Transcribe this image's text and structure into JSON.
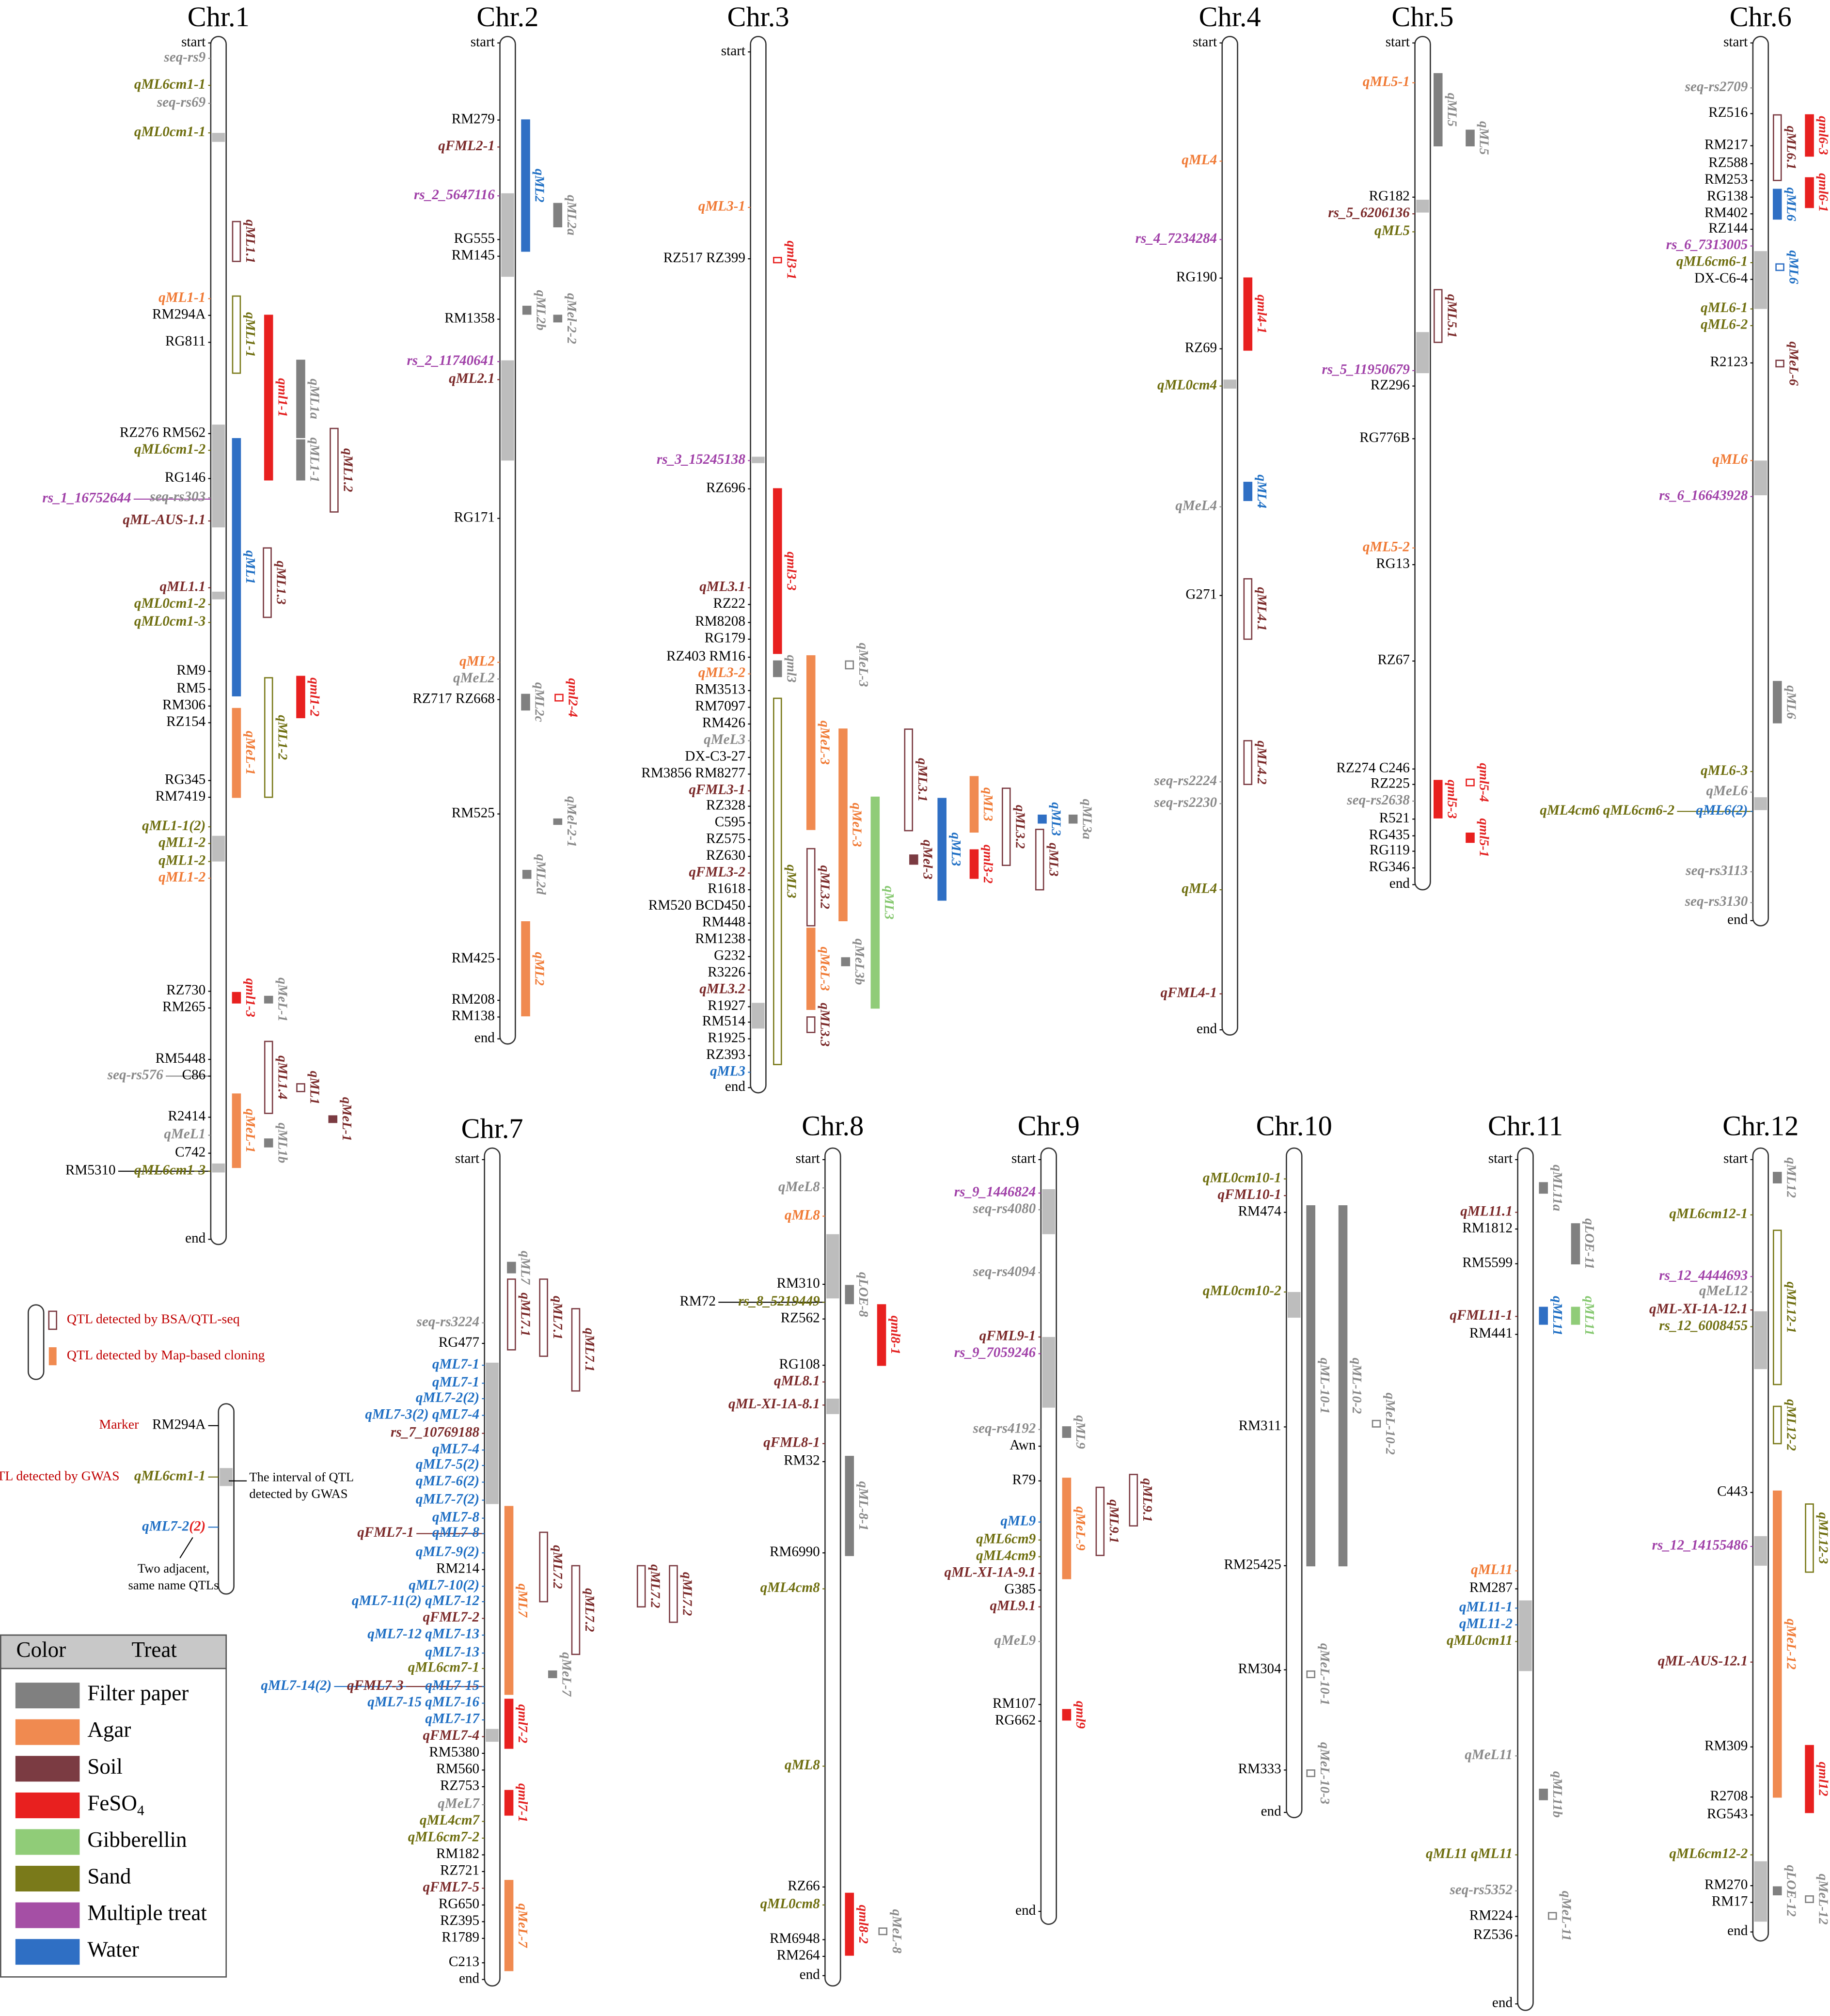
{
  "chromosomes": [
    {
      "title": "Chr.1",
      "labels": [
        "start",
        "seq-rs9",
        "qML6cm1-1",
        "seq-rs69",
        "qML0cm1-1",
        "qML1-1",
        "RM294A",
        "RG811",
        "RZ276 RM562",
        "qML6cm1-2",
        "RG146",
        "rs_1_16752644",
        "seq-rs303",
        "qML-AUS-1.1",
        "qML1.1",
        "qML0cm1-2",
        "qML0cm1-3",
        "RM9",
        "RM5",
        "RM306",
        "RZ154",
        "RG345",
        "RM7419",
        "qML1-1(2)",
        "qML1-2",
        "qML1-2",
        "qML1-2",
        "RZ730",
        "RM265",
        "RM5448",
        "seq-rs576",
        "C86",
        "R2414",
        "qMeL1",
        "C742",
        "RM5310",
        "qML6cm1-3",
        "end"
      ],
      "qtls": [
        "qML1.1",
        "qML1-1",
        "qml1-1",
        "qML1a",
        "qML1-1",
        "qML1.2",
        "qML1",
        "qML1.3",
        "qml1-2",
        "qML1-2",
        "qMeL-1",
        "qml1-3",
        "qMeL-1",
        "qML1.4",
        "qML1",
        "qMeL-1",
        "qMeL-1",
        "qML1b"
      ]
    },
    {
      "title": "Chr.2",
      "labels": [
        "start",
        "RM279",
        "qFML2-1",
        "rs_2_5647116",
        "RG555",
        "RM145",
        "RM1358",
        "rs_2_11740641",
        "qML2.1",
        "RG171",
        "qML2",
        "qMeL2",
        "RZ717 RZ668",
        "RM525",
        "RM425",
        "RM208",
        "RM138",
        "end"
      ],
      "qtls": [
        "qML2",
        "qML2a",
        "qML2b",
        "qMel-2-2",
        "qml2-4",
        "qML2c",
        "qMel-2-1",
        "qML2d",
        "qML2"
      ]
    },
    {
      "title": "Chr.3",
      "labels": [
        "start",
        "qML3-1",
        "RZ517 RZ399",
        "rs_3_15245138",
        "RZ696",
        "qML3.1",
        "RZ22",
        "RM8208",
        "RG179",
        "RZ403 RM16",
        "qML3-2",
        "RM3513",
        "RM7097",
        "RM426",
        "qMeL3",
        "DX-C3-27",
        "RM3856 RM8277",
        "qFML3-1",
        "RZ328",
        "C595",
        "RZ575",
        "RZ630",
        "qFML3-2",
        "R1618",
        "RM520 BCD450",
        "RM448",
        "RM1238",
        "G232",
        "R3226",
        "qML3.2",
        "R1927",
        "RM514",
        "R1925",
        "RZ393",
        "qML3",
        "end"
      ],
      "qtls": [
        "qml3-1",
        "qml3-3",
        "qml3",
        "qMeL-3",
        "qML3",
        "qMeL-3",
        "qMeL-3",
        "qML3.2",
        "qML3",
        "qML3.1",
        "qML3",
        "qML3",
        "qml3-2",
        "qML3.2",
        "qML3",
        "qML3a",
        "qML3",
        "qMel-3",
        "qMeL-3",
        "qMeL3b",
        "qML3.3"
      ]
    },
    {
      "title": "Chr.4",
      "labels": [
        "start",
        "qML4",
        "rs_4_7234284",
        "RG190",
        "RZ69",
        "qML0cm4",
        "qMeL4",
        "G271",
        "seq-rs2224",
        "seq-rs2230",
        "qML4",
        "qFML4-1",
        "end"
      ],
      "qtls": [
        "qml4-1",
        "qML4",
        "qML4.1",
        "qML4.2"
      ]
    },
    {
      "title": "Chr.5",
      "labels": [
        "start",
        "qML5-1",
        "RG182",
        "rs_5_6206136",
        "qML5",
        "rs_5_11950679",
        "RZ296",
        "RG776B",
        "qML5-2",
        "RG13",
        "RZ67",
        "RZ274 C246",
        "RZ225",
        "seq-rs2638",
        "R521",
        "RG435",
        "RG119",
        "RG346",
        "end"
      ],
      "qtls": [
        "qML5",
        "qML5",
        "qML5.1",
        "qml5-4",
        "qml5-3",
        "qml5-1"
      ]
    },
    {
      "title": "Chr.6",
      "labels": [
        "start",
        "seq-rs2709",
        "RZ516",
        "RM217",
        "RZ588",
        "RM253",
        "RG138",
        "RM402",
        "RZ144",
        "rs_6_7313005",
        "qML6cm6-1",
        "DX-C6-4",
        "qML6-1",
        "qML6-2",
        "R2123",
        "qML6",
        "rs_6_16643928",
        "qML6-3",
        "qMeL6",
        "qML4cm6 qML6cm6-2",
        "qML6(2)",
        "seq-rs3113",
        "seq-rs3130",
        "end"
      ],
      "qtls": [
        "qML6.1",
        "qml6-3",
        "qml6-1",
        "qML6",
        "qML6",
        "qMeL-6",
        "qML6"
      ]
    },
    {
      "title": "Chr.7",
      "labels": [
        "start",
        "seq-rs3224",
        "RG477",
        "qML7-1",
        "qML7-1",
        "qML7-2(2)",
        "qML7-3(2) qML7-4",
        "rs_7_10769188",
        "qML7-4",
        "qML7-5(2)",
        "qML7-6(2)",
        "qML7-7(2)",
        "qML7-8",
        "qFML7-1",
        "qML7-8",
        "qML7-9(2)",
        "RM214",
        "qML7-10(2)",
        "qML7-11(2) qML7-12",
        "qFML7-2",
        "qML7-12 qML7-13",
        "qML7-13",
        "qML6cm7-1",
        "qML7-14(2)",
        "qFML7-3",
        "qML7-15",
        "qML7-15 qML7-16",
        "qML7-17",
        "qFML7-4",
        "RM5380",
        "RM560",
        "RZ753",
        "qMeL7",
        "qML4cm7",
        "qML6cm7-2",
        "RM182",
        "RZ721",
        "qFML7-5",
        "RG650",
        "RZ395",
        "R1789",
        "C213",
        "end"
      ],
      "qtls": [
        "qML7",
        "qML7.1",
        "qML7.1",
        "qML7.1",
        "qML7",
        "qML7.2",
        "qML7.2",
        "qML7.2",
        "qML7.2",
        "qMeL-7",
        "qml7-2",
        "qml7-1",
        "qMeL-7"
      ]
    },
    {
      "title": "Chr.8",
      "labels": [
        "start",
        "qMeL8",
        "qML8",
        "RM310",
        "RM72",
        "rs_8_5219449",
        "RZ562",
        "RG108",
        "qML8.1",
        "qML-XI-1A-8.1",
        "qFML8-1",
        "RM32",
        "RM6990",
        "qML4cm8",
        "qML8",
        "RZ66",
        "qML0cm8",
        "RM6948",
        "RM264",
        "end"
      ],
      "qtls": [
        "qLOE-8",
        "qml8-1",
        "qML-8-1",
        "qml8-2",
        "qMeL-8"
      ]
    },
    {
      "title": "Chr.9",
      "labels": [
        "start",
        "rs_9_1446824",
        "seq-rs4080",
        "seq-rs4094",
        "qFML9-1",
        "rs_9_7059246",
        "seq-rs4192",
        "Awn",
        "R79",
        "qML9",
        "qML6cm9",
        "qML4cm9",
        "qML-XI-1A-9.1",
        "G385",
        "qML9.1",
        "qMeL9",
        "RM107",
        "RG662",
        "end"
      ],
      "qtls": [
        "qML9",
        "qMeL-9",
        "qML9.1",
        "qML9.1",
        "qml9"
      ]
    },
    {
      "title": "Chr.10",
      "labels": [
        "qML0cm10-1",
        "qFML10-1",
        "RM474",
        "qML0cm10-2",
        "RM311",
        "RM25425",
        "RM304",
        "RM333",
        "end"
      ],
      "qtls": [
        "qML-10-1",
        "qML-10-2",
        "qMeL-10-2",
        "qMeL-10-1",
        "qMeL-10-3"
      ]
    },
    {
      "title": "Chr.11",
      "labels": [
        "start",
        "qML11.1",
        "RM1812",
        "RM5599",
        "qFML11-1",
        "RM441",
        "qML11",
        "RM287",
        "qML11-1",
        "qML11-2",
        "qML0cm11",
        "qMeL11",
        "qML11 qML11",
        "seq-rs5352",
        "RM224",
        "RZ536",
        "end"
      ],
      "qtls": [
        "qML11a",
        "qLOE-11",
        "qML11",
        "qML11",
        "qML11b",
        "qMeL-11"
      ]
    },
    {
      "title": "Chr.12",
      "labels": [
        "start",
        "qML6cm12-1",
        "rs_12_4444693",
        "qMeL12",
        "qML-XI-1A-12.1",
        "rs_12_6008455",
        "C443",
        "rs_12_14155486",
        "qML-AUS-12.1",
        "RM309",
        "R2708",
        "RG543",
        "qML6cm12-2",
        "RM270",
        "RM17",
        "end"
      ],
      "qtls": [
        "qML12",
        "qML12-1",
        "qML12-2",
        "qML12-3",
        "qMeL-12",
        "qml12",
        "qLOE-12",
        "qMeL-12"
      ]
    }
  ],
  "key": {
    "bsa": "QTL detected by BSA/QTL-seq",
    "map": "QTL detected by Map-based cloning",
    "marker_caption": "Marker",
    "marker": "RM294A",
    "gwas_caption": "QTL detected by GWAS",
    "gwas_qtl": "qML6cm1-1",
    "interval_note": [
      "The interval of QTL",
      "detected by GWAS"
    ],
    "adjacent_qtl": [
      "qML7-2",
      "(2)"
    ],
    "adjacent_note": [
      "Two adjacent,",
      "same name QTLs"
    ]
  },
  "legend": {
    "headers": [
      "Color",
      "Treat"
    ],
    "items": [
      {
        "label": "Filter paper"
      },
      {
        "label": "Agar"
      },
      {
        "label": "Soil"
      },
      {
        "label": "FeSO",
        "subscript": "4"
      },
      {
        "label": "Gibberellin"
      },
      {
        "label": "Sand"
      },
      {
        "label": "Multiple treat"
      },
      {
        "label": "Water"
      }
    ]
  }
}
